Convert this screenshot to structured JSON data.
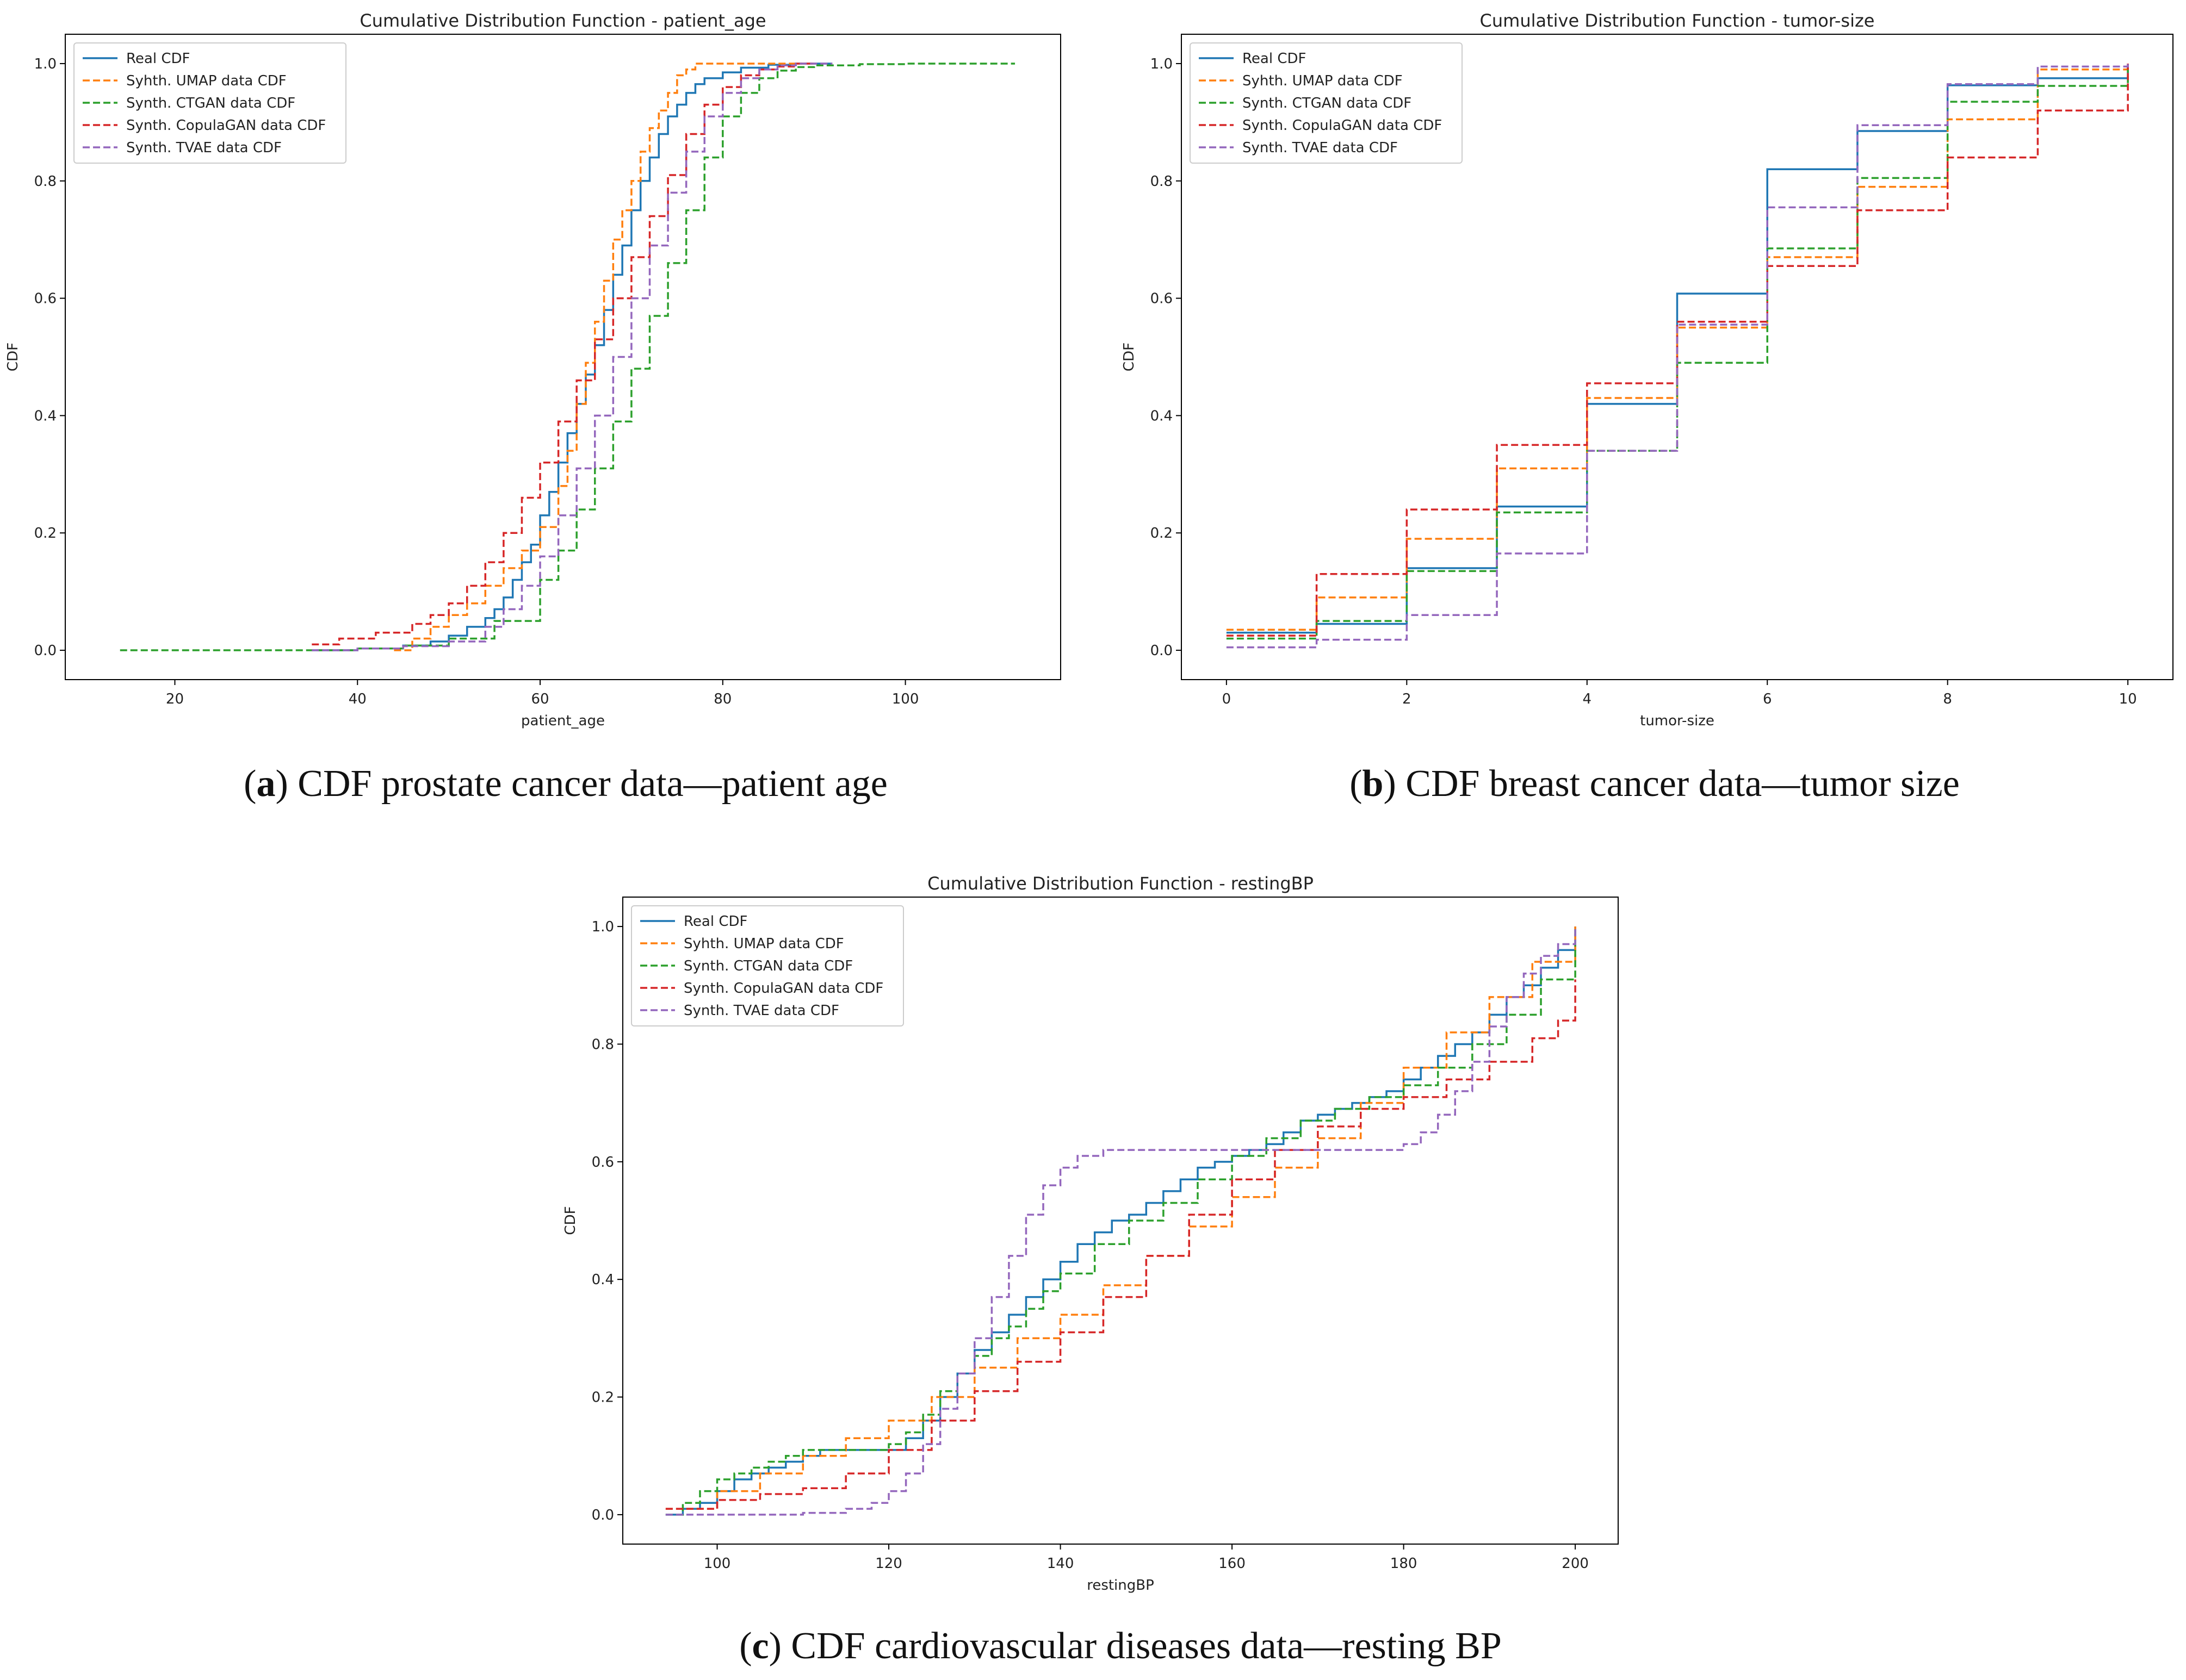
{
  "chart_data": [
    {
      "type": "line",
      "step": true,
      "title": "Cumulative Distribution Function - patient_age",
      "xlabel": "patient_age",
      "ylabel": "CDF",
      "xlim": [
        8,
        117
      ],
      "ylim": [
        -0.05,
        1.05
      ],
      "xticks": [
        "20",
        "40",
        "60",
        "80",
        "100"
      ],
      "yticks": [
        "0.0",
        "0.2",
        "0.4",
        "0.6",
        "0.8",
        "1.0"
      ],
      "legend_position": "top-left",
      "caption_letter": "a",
      "caption_text": " CDF prostate cancer data—patient age",
      "series": [
        {
          "name": "Real CDF",
          "color": "#1f77b4",
          "dashed": false,
          "x": [
            35,
            40,
            45,
            48,
            50,
            52,
            54,
            55,
            56,
            57,
            58,
            59,
            60,
            61,
            62,
            63,
            64,
            65,
            66,
            67,
            68,
            69,
            70,
            71,
            72,
            73,
            74,
            75,
            76,
            77,
            78,
            80,
            82,
            85,
            88,
            90,
            92
          ],
          "y": [
            0.0,
            0.003,
            0.008,
            0.015,
            0.025,
            0.04,
            0.055,
            0.07,
            0.09,
            0.12,
            0.15,
            0.18,
            0.23,
            0.27,
            0.32,
            0.37,
            0.42,
            0.47,
            0.52,
            0.58,
            0.64,
            0.69,
            0.75,
            0.8,
            0.84,
            0.88,
            0.91,
            0.93,
            0.95,
            0.965,
            0.975,
            0.985,
            0.993,
            0.998,
            1.0,
            1.0,
            1.0
          ]
        },
        {
          "name": "Syhth. UMAP data CDF",
          "color": "#ff7f0e",
          "dashed": true,
          "x": [
            44,
            46,
            48,
            50,
            52,
            54,
            56,
            58,
            60,
            62,
            63,
            64,
            65,
            66,
            67,
            68,
            69,
            70,
            71,
            72,
            73,
            74,
            75,
            76,
            77,
            78,
            80,
            82,
            85,
            90
          ],
          "y": [
            0.0,
            0.02,
            0.04,
            0.06,
            0.08,
            0.11,
            0.14,
            0.17,
            0.21,
            0.28,
            0.34,
            0.42,
            0.49,
            0.56,
            0.63,
            0.7,
            0.75,
            0.8,
            0.85,
            0.89,
            0.92,
            0.95,
            0.98,
            0.99,
            1.0,
            1.0,
            1.0,
            1.0,
            1.0,
            1.0
          ]
        },
        {
          "name": "Synth. CTGAN data CDF",
          "color": "#2ca02c",
          "dashed": true,
          "x": [
            14,
            30,
            40,
            45,
            50,
            55,
            60,
            62,
            64,
            66,
            68,
            70,
            72,
            74,
            76,
            78,
            80,
            82,
            84,
            86,
            88,
            90,
            95,
            100,
            105,
            112
          ],
          "y": [
            0.0,
            0.0,
            0.003,
            0.008,
            0.02,
            0.05,
            0.12,
            0.17,
            0.24,
            0.31,
            0.39,
            0.48,
            0.57,
            0.66,
            0.75,
            0.84,
            0.91,
            0.95,
            0.975,
            0.988,
            0.994,
            0.997,
            0.999,
            1.0,
            1.0,
            1.0
          ]
        },
        {
          "name": "Synth. CopulaGAN data CDF",
          "color": "#d62728",
          "dashed": true,
          "x": [
            35,
            38,
            42,
            46,
            48,
            50,
            52,
            54,
            56,
            58,
            60,
            62,
            64,
            66,
            68,
            70,
            72,
            74,
            76,
            78,
            80,
            82,
            84,
            86,
            88,
            90
          ],
          "y": [
            0.01,
            0.02,
            0.03,
            0.045,
            0.06,
            0.08,
            0.11,
            0.15,
            0.2,
            0.26,
            0.32,
            0.39,
            0.46,
            0.53,
            0.6,
            0.67,
            0.74,
            0.81,
            0.88,
            0.93,
            0.96,
            0.98,
            0.99,
            0.995,
            1.0,
            1.0
          ]
        },
        {
          "name": "Synth. TVAE data CDF",
          "color": "#9467bd",
          "dashed": true,
          "x": [
            35,
            40,
            45,
            50,
            54,
            56,
            58,
            60,
            62,
            64,
            66,
            68,
            70,
            72,
            74,
            76,
            78,
            80,
            82,
            84,
            86,
            88,
            90,
            92
          ],
          "y": [
            0.0,
            0.003,
            0.007,
            0.015,
            0.04,
            0.07,
            0.11,
            0.16,
            0.23,
            0.31,
            0.4,
            0.5,
            0.6,
            0.69,
            0.78,
            0.85,
            0.91,
            0.95,
            0.975,
            0.99,
            0.997,
            1.0,
            1.0,
            1.0
          ]
        }
      ]
    },
    {
      "type": "line",
      "step": true,
      "title": "Cumulative Distribution Function - tumor-size",
      "xlabel": "tumor-size",
      "ylabel": "CDF",
      "xlim": [
        -0.5,
        10.5
      ],
      "ylim": [
        -0.05,
        1.05
      ],
      "xticks": [
        "0",
        "2",
        "4",
        "6",
        "8",
        "10"
      ],
      "yticks": [
        "0.0",
        "0.2",
        "0.4",
        "0.6",
        "0.8",
        "1.0"
      ],
      "legend_position": "top-left",
      "caption_letter": "b",
      "caption_text": " CDF breast cancer data—tumor size",
      "series": [
        {
          "name": "Real CDF",
          "color": "#1f77b4",
          "dashed": false,
          "x": [
            0,
            1,
            2,
            3,
            4,
            5,
            6,
            7,
            8,
            9,
            10
          ],
          "y": [
            0.03,
            0.045,
            0.14,
            0.245,
            0.42,
            0.608,
            0.82,
            0.885,
            0.963,
            0.975,
            1.0
          ]
        },
        {
          "name": "Syhth. UMAP data CDF",
          "color": "#ff7f0e",
          "dashed": true,
          "x": [
            0,
            1,
            2,
            3,
            4,
            5,
            6,
            7,
            8,
            9,
            10
          ],
          "y": [
            0.035,
            0.09,
            0.19,
            0.31,
            0.43,
            0.55,
            0.67,
            0.79,
            0.905,
            0.99,
            1.0
          ]
        },
        {
          "name": "Synth. CTGAN data CDF",
          "color": "#2ca02c",
          "dashed": true,
          "x": [
            0,
            1,
            2,
            3,
            4,
            5,
            6,
            7,
            8,
            9,
            10
          ],
          "y": [
            0.02,
            0.05,
            0.135,
            0.235,
            0.34,
            0.49,
            0.685,
            0.805,
            0.935,
            0.962,
            1.0
          ]
        },
        {
          "name": "Synth. CopulaGAN data CDF",
          "color": "#d62728",
          "dashed": true,
          "x": [
            0,
            1,
            2,
            3,
            4,
            5,
            6,
            7,
            8,
            9,
            10
          ],
          "y": [
            0.025,
            0.13,
            0.24,
            0.35,
            0.455,
            0.56,
            0.655,
            0.75,
            0.84,
            0.92,
            1.0
          ]
        },
        {
          "name": "Synth. TVAE data CDF",
          "color": "#9467bd",
          "dashed": true,
          "x": [
            0,
            1,
            2,
            3,
            4,
            5,
            6,
            7,
            8,
            9,
            10
          ],
          "y": [
            0.005,
            0.018,
            0.06,
            0.165,
            0.34,
            0.555,
            0.755,
            0.895,
            0.965,
            0.995,
            1.0
          ]
        }
      ]
    },
    {
      "type": "line",
      "step": true,
      "title": "Cumulative Distribution Function - restingBP",
      "xlabel": "restingBP",
      "ylabel": "CDF",
      "xlim": [
        89,
        205
      ],
      "ylim": [
        -0.05,
        1.05
      ],
      "xticks": [
        "100",
        "120",
        "140",
        "160",
        "180",
        "200"
      ],
      "yticks": [
        "0.0",
        "0.2",
        "0.4",
        "0.6",
        "0.8",
        "1.0"
      ],
      "legend_position": "top-left",
      "caption_letter": "c",
      "caption_text": " CDF cardiovascular diseases data—resting BP",
      "series": [
        {
          "name": "Real CDF",
          "color": "#1f77b4",
          "dashed": false,
          "x": [
            94,
            96,
            98,
            100,
            102,
            104,
            106,
            108,
            110,
            112,
            115,
            118,
            120,
            122,
            124,
            126,
            128,
            130,
            132,
            134,
            136,
            138,
            140,
            142,
            144,
            146,
            148,
            150,
            152,
            154,
            156,
            158,
            160,
            162,
            164,
            166,
            168,
            170,
            172,
            174,
            176,
            178,
            180,
            182,
            184,
            186,
            188,
            190,
            192,
            194,
            196,
            198,
            200
          ],
          "y": [
            0.0,
            0.01,
            0.02,
            0.04,
            0.06,
            0.07,
            0.08,
            0.09,
            0.1,
            0.11,
            0.11,
            0.11,
            0.11,
            0.13,
            0.16,
            0.2,
            0.24,
            0.28,
            0.31,
            0.34,
            0.37,
            0.4,
            0.43,
            0.46,
            0.48,
            0.5,
            0.51,
            0.53,
            0.55,
            0.57,
            0.59,
            0.6,
            0.61,
            0.62,
            0.63,
            0.65,
            0.67,
            0.68,
            0.69,
            0.7,
            0.71,
            0.72,
            0.74,
            0.76,
            0.78,
            0.8,
            0.82,
            0.85,
            0.88,
            0.9,
            0.93,
            0.96,
            1.0
          ]
        },
        {
          "name": "Syhth. UMAP data CDF",
          "color": "#ff7f0e",
          "dashed": true,
          "x": [
            94,
            100,
            105,
            110,
            115,
            120,
            125,
            130,
            135,
            140,
            145,
            150,
            155,
            160,
            165,
            170,
            175,
            180,
            185,
            190,
            195,
            200
          ],
          "y": [
            0.01,
            0.04,
            0.07,
            0.1,
            0.13,
            0.16,
            0.2,
            0.25,
            0.3,
            0.34,
            0.39,
            0.44,
            0.49,
            0.54,
            0.59,
            0.64,
            0.7,
            0.76,
            0.82,
            0.88,
            0.94,
            1.0
          ]
        },
        {
          "name": "Synth. CTGAN data CDF",
          "color": "#2ca02c",
          "dashed": true,
          "x": [
            94,
            96,
            98,
            100,
            102,
            104,
            106,
            108,
            110,
            112,
            115,
            118,
            120,
            122,
            124,
            126,
            128,
            130,
            132,
            134,
            136,
            138,
            140,
            144,
            148,
            152,
            156,
            160,
            164,
            168,
            172,
            176,
            180,
            184,
            188,
            192,
            196,
            200
          ],
          "y": [
            0.0,
            0.02,
            0.04,
            0.06,
            0.07,
            0.08,
            0.09,
            0.1,
            0.11,
            0.11,
            0.11,
            0.11,
            0.12,
            0.14,
            0.17,
            0.21,
            0.24,
            0.27,
            0.3,
            0.32,
            0.35,
            0.38,
            0.41,
            0.46,
            0.5,
            0.53,
            0.57,
            0.61,
            0.64,
            0.67,
            0.69,
            0.71,
            0.73,
            0.76,
            0.8,
            0.85,
            0.91,
            1.0
          ]
        },
        {
          "name": "Synth. CopulaGAN data CDF",
          "color": "#d62728",
          "dashed": true,
          "x": [
            94,
            100,
            105,
            110,
            115,
            120,
            125,
            130,
            135,
            140,
            145,
            150,
            155,
            160,
            165,
            170,
            175,
            180,
            185,
            190,
            195,
            198,
            200
          ],
          "y": [
            0.01,
            0.025,
            0.035,
            0.045,
            0.07,
            0.11,
            0.16,
            0.21,
            0.26,
            0.31,
            0.37,
            0.44,
            0.51,
            0.57,
            0.62,
            0.66,
            0.69,
            0.71,
            0.74,
            0.77,
            0.81,
            0.84,
            0.91
          ]
        },
        {
          "name": "Synth. TVAE data CDF",
          "color": "#9467bd",
          "dashed": true,
          "x": [
            94,
            100,
            110,
            115,
            118,
            120,
            122,
            124,
            126,
            128,
            130,
            132,
            134,
            136,
            138,
            140,
            142,
            145,
            150,
            160,
            170,
            175,
            180,
            182,
            184,
            186,
            188,
            190,
            192,
            194,
            196,
            198,
            200
          ],
          "y": [
            0.0,
            0.0,
            0.003,
            0.01,
            0.02,
            0.04,
            0.07,
            0.12,
            0.18,
            0.24,
            0.3,
            0.37,
            0.44,
            0.51,
            0.56,
            0.59,
            0.61,
            0.62,
            0.62,
            0.62,
            0.62,
            0.62,
            0.63,
            0.65,
            0.68,
            0.72,
            0.77,
            0.83,
            0.88,
            0.92,
            0.95,
            0.97,
            1.0
          ]
        }
      ]
    }
  ]
}
